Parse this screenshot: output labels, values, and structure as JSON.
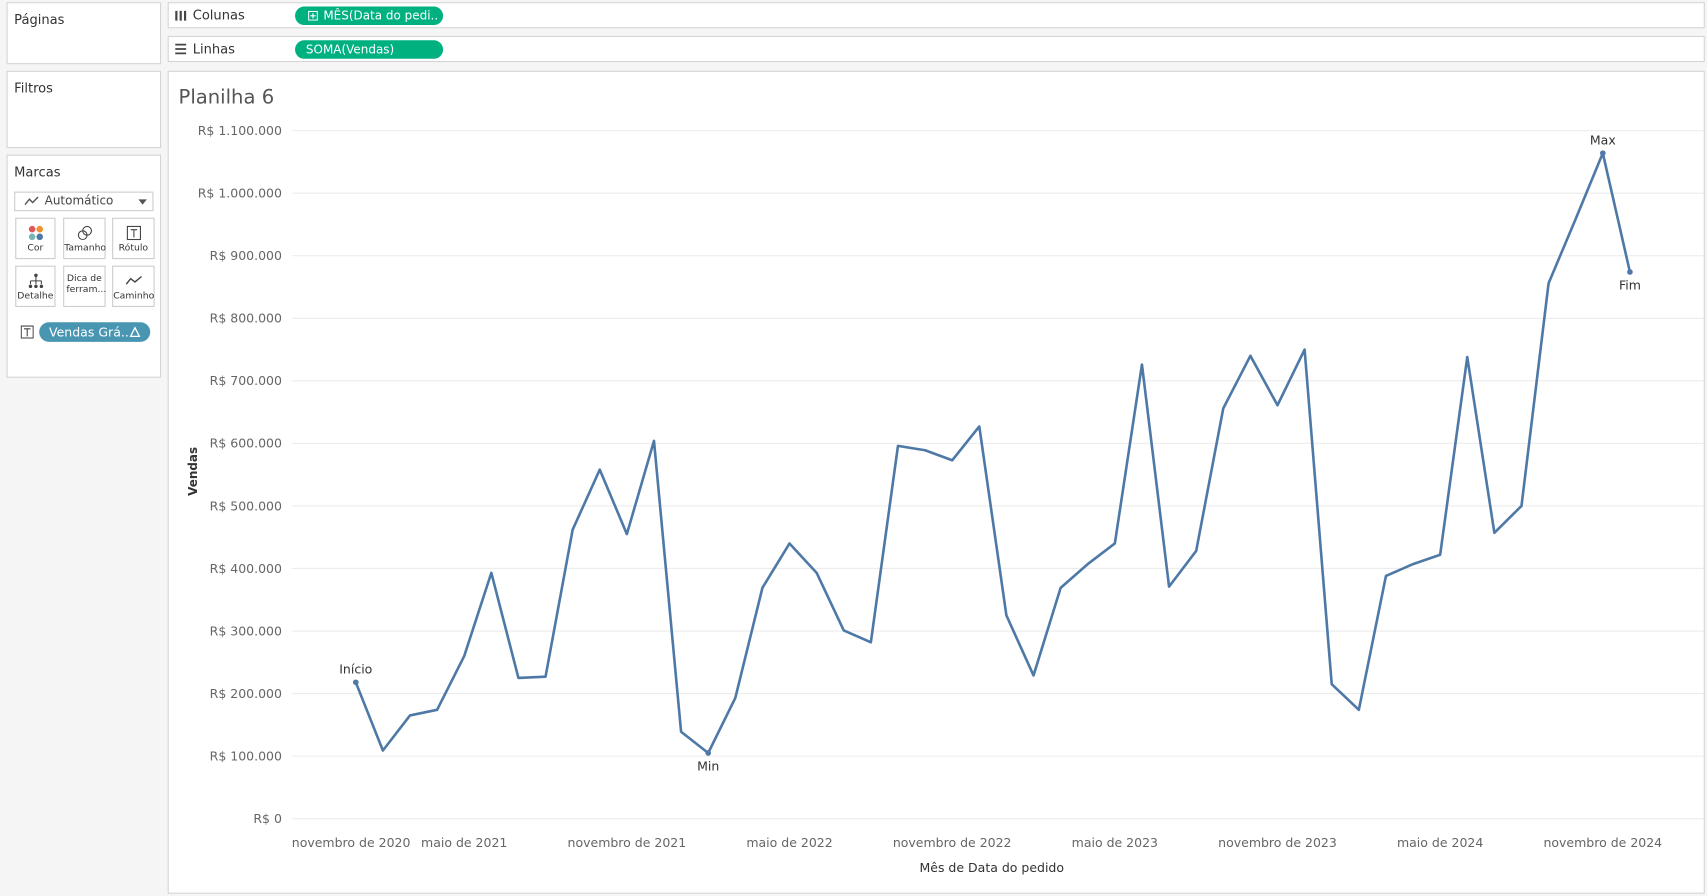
{
  "ui": {
    "panels": {
      "pages": "Páginas",
      "filters": "Filtros",
      "marks": "Marcas"
    },
    "mark_type": "Automático",
    "mark_cards": [
      "Cor",
      "Tamanho",
      "Rótulo",
      "Detalhe",
      "Dica de ferram...",
      "Caminho"
    ],
    "mark_pill": "Vendas Grá..",
    "columns": {
      "label": "Colunas",
      "pill": "MÊS(Data do pedi.."
    },
    "rows": {
      "label": "Linhas",
      "pill": "SOMA(Vendas)"
    }
  },
  "chart_data": {
    "type": "line",
    "title": "Planilha 6",
    "x_label": "Mês de Data do pedido",
    "y_label": "Vendas",
    "x": [
      "2021-01",
      "2021-02",
      "2021-03",
      "2021-04",
      "2021-05",
      "2021-06",
      "2021-07",
      "2021-08",
      "2021-09",
      "2021-10",
      "2021-11",
      "2021-12",
      "2022-01",
      "2022-02",
      "2022-03",
      "2022-04",
      "2022-05",
      "2022-06",
      "2022-07",
      "2022-08",
      "2022-09",
      "2022-10",
      "2022-11",
      "2022-12",
      "2023-01",
      "2023-02",
      "2023-03",
      "2023-04",
      "2023-05",
      "2023-06",
      "2023-07",
      "2023-08",
      "2023-09",
      "2023-10",
      "2023-11",
      "2023-12",
      "2024-01",
      "2024-02",
      "2024-03",
      "2024-04",
      "2024-05",
      "2024-06",
      "2024-07",
      "2024-08",
      "2024-09",
      "2024-10",
      "2024-11",
      "2024-12"
    ],
    "series": [
      {
        "name": "Vendas",
        "color": "#4e79a7",
        "values": [
          218000,
          109000,
          165000,
          174000,
          260000,
          393000,
          225000,
          227000,
          462000,
          558000,
          455000,
          604000,
          139000,
          105000,
          193000,
          369000,
          440000,
          393000,
          301000,
          282000,
          596000,
          589000,
          573000,
          627000,
          325000,
          229000,
          369000,
          407000,
          440000,
          726000,
          371000,
          428000,
          656000,
          740000,
          661000,
          750000,
          215000,
          174000,
          388000,
          407000,
          422000,
          738000,
          457000,
          500000,
          856000,
          959000,
          1064000,
          874000
        ]
      }
    ],
    "annotations": [
      {
        "text": "Início",
        "x": "2021-01"
      },
      {
        "text": "Min",
        "x": "2022-02"
      },
      {
        "text": "Max",
        "x": "2024-11"
      },
      {
        "text": "Fim",
        "x": "2024-12"
      }
    ],
    "xlim": [
      "2020-11",
      "2025-02"
    ],
    "xticks": [
      {
        "value": "2020-11",
        "label": "novembro de 2020"
      },
      {
        "value": "2021-05",
        "label": "maio de 2021"
      },
      {
        "value": "2021-11",
        "label": "novembro de 2021"
      },
      {
        "value": "2022-05",
        "label": "maio de 2022"
      },
      {
        "value": "2022-11",
        "label": "novembro de 2022"
      },
      {
        "value": "2023-05",
        "label": "maio de 2023"
      },
      {
        "value": "2023-11",
        "label": "novembro de 2023"
      },
      {
        "value": "2024-05",
        "label": "maio de 2024"
      },
      {
        "value": "2024-11",
        "label": "novembro de 2024"
      }
    ],
    "ylim": [
      0,
      1100000
    ],
    "yticks": [
      {
        "value": 0,
        "label": "R$ 0"
      },
      {
        "value": 100000,
        "label": "R$ 100.000"
      },
      {
        "value": 200000,
        "label": "R$ 200.000"
      },
      {
        "value": 300000,
        "label": "R$ 300.000"
      },
      {
        "value": 400000,
        "label": "R$ 400.000"
      },
      {
        "value": 500000,
        "label": "R$ 500.000"
      },
      {
        "value": 600000,
        "label": "R$ 600.000"
      },
      {
        "value": 700000,
        "label": "R$ 700.000"
      },
      {
        "value": 800000,
        "label": "R$ 800.000"
      },
      {
        "value": 900000,
        "label": "R$ 900.000"
      },
      {
        "value": 1000000,
        "label": "R$ 1.000.000"
      },
      {
        "value": 1100000,
        "label": "R$ 1.100.000"
      }
    ],
    "grid": true
  }
}
